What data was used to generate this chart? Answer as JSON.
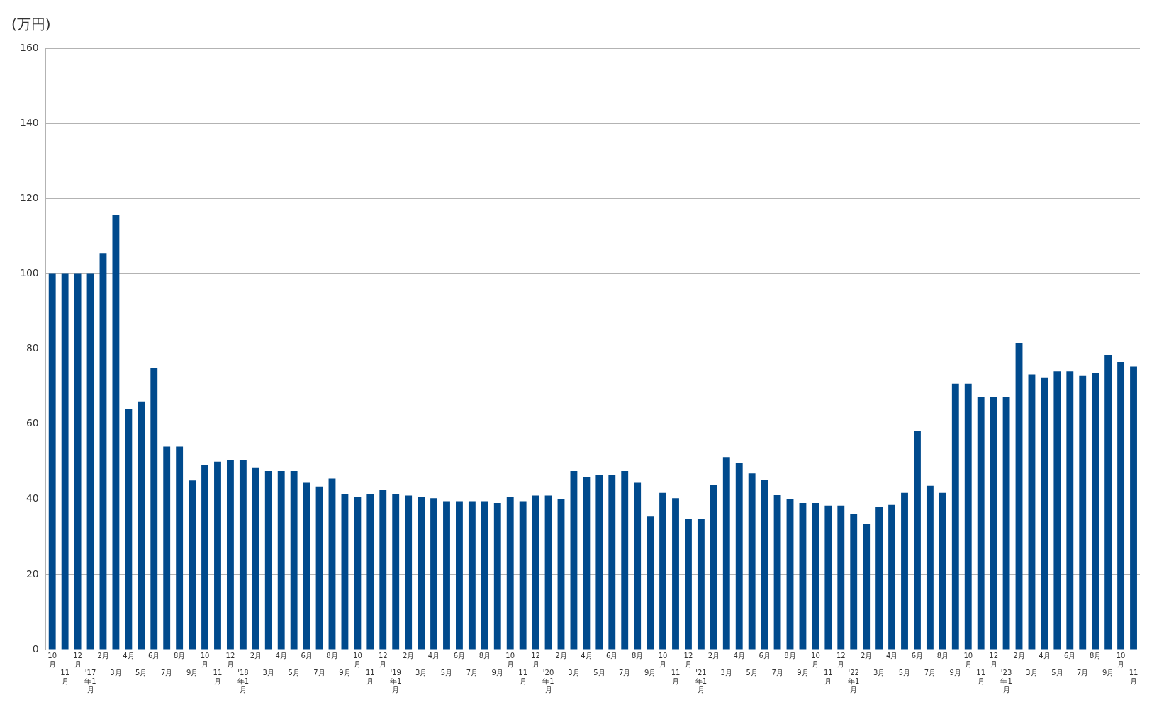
{
  "chart_data": {
    "type": "bar",
    "ylabel": "(万円)",
    "categories": [
      "10月",
      "11月",
      "12月",
      "'17年1月",
      "2月",
      "3月",
      "4月",
      "5月",
      "6月",
      "7月",
      "8月",
      "9月",
      "10月",
      "11月",
      "12月",
      "'18年1月",
      "2月",
      "3月",
      "4月",
      "5月",
      "6月",
      "7月",
      "8月",
      "9月",
      "10月",
      "11月",
      "12月",
      "'19年1月",
      "2月",
      "3月",
      "4月",
      "5月",
      "6月",
      "7月",
      "8月",
      "9月",
      "10月",
      "11月",
      "12月",
      "'20年1月",
      "2月",
      "3月",
      "4月",
      "5月",
      "6月",
      "7月",
      "8月",
      "9月",
      "10月",
      "11月",
      "12月",
      "'21年1月",
      "2月",
      "3月",
      "4月",
      "5月",
      "6月",
      "7月",
      "8月",
      "9月",
      "10月",
      "11月",
      "12月",
      "'22年1月",
      "2月",
      "3月",
      "4月",
      "5月",
      "6月",
      "7月",
      "8月",
      "9月",
      "10月",
      "11月",
      "12月",
      "'23年1月",
      "2月",
      "3月",
      "4月",
      "5月",
      "6月",
      "7月",
      "8月",
      "9月",
      "10月",
      "11月"
    ],
    "values": [
      100,
      100,
      100,
      100,
      105.5,
      115.6,
      64,
      66,
      75,
      54,
      54,
      45,
      49,
      50,
      50.5,
      50.5,
      48.5,
      47.5,
      47.5,
      47.5,
      44.4,
      43.4,
      45.5,
      41.3,
      40.5,
      41.3,
      42.4,
      41.3,
      41,
      40.5,
      40.3,
      39.5,
      39.5,
      39.5,
      39.5,
      39,
      40.5,
      39.5,
      41,
      41,
      40,
      47.5,
      46,
      46.5,
      46.5,
      47.5,
      44.4,
      35.4,
      41.7,
      40.3,
      34.8,
      34.8,
      43.8,
      51.2,
      49.6,
      46.9,
      45.2,
      41.1,
      40,
      39,
      39,
      38.3,
      38.3,
      36,
      33.5,
      38,
      38.5,
      41.7,
      58.2,
      43.6,
      41.7,
      70.7,
      70.7,
      67.2,
      67.2,
      67.2,
      81.6,
      73.2,
      72.4,
      74,
      74,
      72.8,
      73.6,
      78.4,
      76.5,
      75.3
    ],
    "color": "#004a8d",
    "ylim": [
      0,
      160
    ],
    "yticks": [
      0,
      20,
      40,
      60,
      80,
      100,
      120,
      140,
      160
    ],
    "grid": "y",
    "legend": false
  }
}
